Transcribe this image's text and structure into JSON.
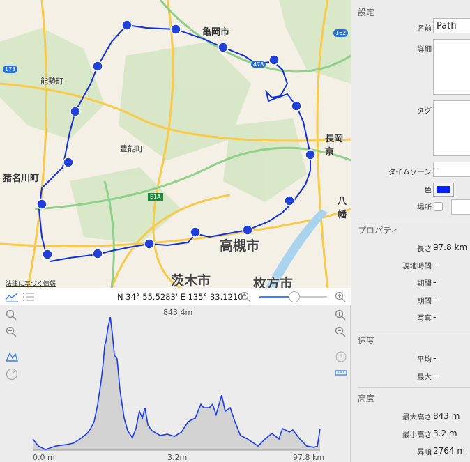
{
  "map": {
    "labels": {
      "kameoka": "亀岡市",
      "nose": "能勢町",
      "toyono": "豊能町",
      "inagawa": "猪名川町",
      "nagaokakyo": "長岡京",
      "yawata": "八幡",
      "takatsuki": "高槻市",
      "ibaraki": "茨木市",
      "hirakata": "枚方市"
    },
    "shields": {
      "r173": "173",
      "r162": "162",
      "r478": "478",
      "e1a": "E1A"
    },
    "legal_link": "法律に基づく情報",
    "route_color": "#1030e0"
  },
  "toolbar": {
    "coordinates": "N 34° 55.5283' E 135° 33.1210'",
    "zoom_level_percent": 50
  },
  "elevation": {
    "peak_label": "843.4m",
    "x_start": "0.0 m",
    "x_mid": "3.2m",
    "x_end": "97.8 km",
    "line_color": "#1a3cf0"
  },
  "chart_data": {
    "type": "area",
    "xunit": "km",
    "yunit": "m",
    "xlim": [
      0,
      97.8
    ],
    "ylim": [
      0,
      843.4
    ],
    "x": [
      0,
      1.9,
      4.3,
      7.8,
      11.4,
      13.8,
      16.1,
      18.5,
      19.7,
      20.9,
      22.1,
      23.3,
      24.0,
      24.5,
      24.9,
      25.6,
      26.4,
      27.1,
      27.8,
      28.7,
      29.7,
      31.1,
      32.3,
      33.9,
      35.1,
      36.3,
      37.3,
      38.2,
      39.2,
      40.6,
      43.4,
      45.8,
      48.2,
      50.6,
      52.9,
      55.3,
      57.2,
      58.2,
      60.1,
      61.2,
      62.4,
      64.3,
      65.5,
      67.2,
      68.8,
      70.7,
      73.1,
      76.7,
      79.1,
      81.4,
      83.8,
      85.0,
      87.4,
      88.5,
      90.9,
      93.3,
      95.7,
      96.9,
      97.8
    ],
    "y": [
      71,
      26,
      4,
      26,
      35,
      44,
      71,
      106,
      137,
      181,
      291,
      445,
      556,
      666,
      688,
      776,
      843,
      732,
      600,
      578,
      379,
      203,
      123,
      79,
      137,
      247,
      203,
      269,
      159,
      123,
      93,
      101,
      88,
      115,
      181,
      203,
      291,
      269,
      269,
      291,
      225,
      348,
      247,
      269,
      181,
      93,
      71,
      26,
      71,
      106,
      71,
      137,
      115,
      128,
      71,
      26,
      18,
      26,
      137
    ]
  },
  "panel": {
    "settings_title": "設定",
    "name_label": "名前",
    "name_value": "Path",
    "detail_label": "詳細",
    "tag_label": "タグ",
    "timezone_label": "タイムゾーン",
    "timezone_value": "-",
    "color_label": "色",
    "color_value": "#0a22ff",
    "place_label": "場所",
    "properties_title": "プロパティ",
    "props": [
      {
        "label": "長さ",
        "value": "97.8 km"
      },
      {
        "label": "現地時間",
        "value": "-"
      },
      {
        "label": "期間",
        "value": "-"
      },
      {
        "label": "期間",
        "value": "-"
      },
      {
        "label": "写真",
        "value": "-"
      }
    ],
    "speed_title": "速度",
    "speed": [
      {
        "label": "平均",
        "value": "-"
      },
      {
        "label": "最大",
        "value": "-"
      }
    ],
    "altitude_title": "高度",
    "altitude": [
      {
        "label": "最大高さ",
        "value": "843 m"
      },
      {
        "label": "最小高さ",
        "value": "3.2 m"
      },
      {
        "label": "昇順",
        "value": "2764 m"
      }
    ]
  }
}
